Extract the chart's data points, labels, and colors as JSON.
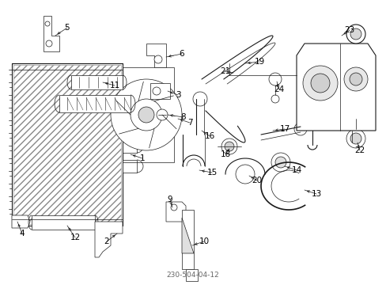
{
  "bg_color": "#ffffff",
  "line_color": "#1a1a1a",
  "label_color": "#000000",
  "fig_width": 4.89,
  "fig_height": 3.6,
  "dpi": 100,
  "watermark": "230-504-04-12",
  "font_size": 7.5
}
